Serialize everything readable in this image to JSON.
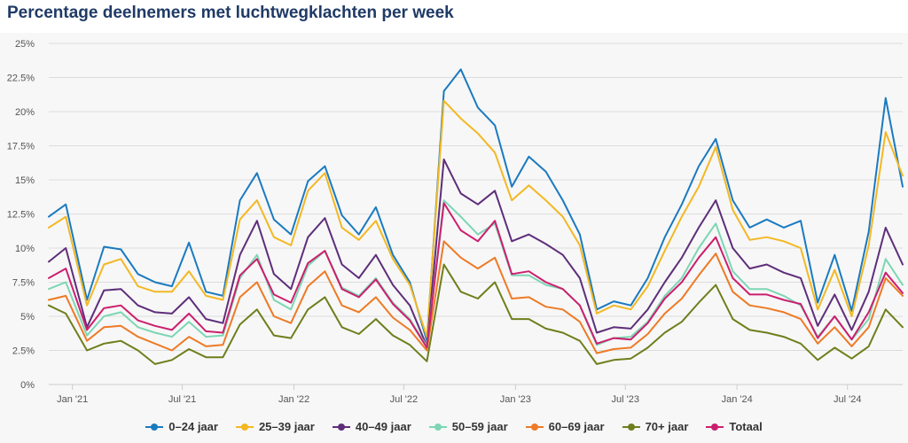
{
  "title": "Percentage deelnemers met luchtwegklachten per week",
  "chart_data": {
    "type": "line",
    "title": "Percentage deelnemers met luchtwegklachten per week",
    "xlabel": "",
    "ylabel": "",
    "ylim": [
      0,
      25
    ],
    "y_ticks": [
      "0%",
      "2.5%",
      "5%",
      "7.5%",
      "10%",
      "12.5%",
      "15%",
      "17.5%",
      "20%",
      "22.5%",
      "25%"
    ],
    "x_ticks": [
      "Jan '21",
      "Jul '21",
      "Jan '22",
      "Jul '22",
      "Jan '23",
      "Jul '23",
      "Jan '24",
      "Jul '24"
    ],
    "x_range": [
      "2020-11-23",
      "2024-09-30"
    ],
    "grid": "horizontal",
    "legend_position": "bottom",
    "x": [
      "2020-11-23",
      "2020-12-21",
      "2021-01-25",
      "2021-02-22",
      "2021-03-22",
      "2021-04-19",
      "2021-05-17",
      "2021-06-14",
      "2021-07-12",
      "2021-08-09",
      "2021-09-06",
      "2021-10-04",
      "2021-11-01",
      "2021-11-29",
      "2021-12-27",
      "2022-01-24",
      "2022-02-21",
      "2022-03-21",
      "2022-04-18",
      "2022-05-16",
      "2022-06-13",
      "2022-07-11",
      "2022-08-08",
      "2022-09-05",
      "2022-10-03",
      "2022-10-31",
      "2022-11-28",
      "2022-12-26",
      "2023-01-23",
      "2023-02-20",
      "2023-03-20",
      "2023-04-17",
      "2023-05-15",
      "2023-06-12",
      "2023-07-10",
      "2023-08-07",
      "2023-09-04",
      "2023-10-02",
      "2023-10-30",
      "2023-11-27",
      "2023-12-25",
      "2024-01-22",
      "2024-02-19",
      "2024-03-18",
      "2024-04-15",
      "2024-05-13",
      "2024-06-10",
      "2024-07-08",
      "2024-08-05",
      "2024-09-02",
      "2024-09-30"
    ],
    "series": [
      {
        "name": "0–24 jaar",
        "color": "#1a7ac0",
        "values": [
          12.3,
          13.2,
          6.2,
          10.1,
          9.9,
          8.1,
          7.5,
          7.2,
          10.4,
          6.8,
          6.5,
          13.5,
          15.5,
          12.1,
          11.0,
          14.9,
          16.0,
          12.4,
          11.0,
          13.0,
          9.5,
          7.5,
          3.2,
          21.5,
          23.1,
          20.3,
          19.0,
          14.5,
          16.7,
          15.6,
          13.5,
          11.0,
          5.5,
          6.1,
          5.8,
          7.8,
          10.8,
          13.2,
          16.0,
          18.0,
          13.5,
          11.5,
          12.1,
          11.5,
          12.0,
          6.0,
          9.5,
          5.4,
          11.2,
          21.0,
          14.5
        ]
      },
      {
        "name": "25–39 jaar",
        "color": "#f3b823",
        "values": [
          11.5,
          12.3,
          5.8,
          8.8,
          9.2,
          7.2,
          6.8,
          6.8,
          8.3,
          6.5,
          6.2,
          12.1,
          13.5,
          10.8,
          10.2,
          14.2,
          15.5,
          11.5,
          10.6,
          12.0,
          9.2,
          7.3,
          3.5,
          20.8,
          19.5,
          18.4,
          17.0,
          13.5,
          14.6,
          13.5,
          12.3,
          10.2,
          5.2,
          5.8,
          5.5,
          7.2,
          9.8,
          12.3,
          14.5,
          17.4,
          12.8,
          10.6,
          10.8,
          10.5,
          10.0,
          5.5,
          8.4,
          5.0,
          10.2,
          18.5,
          15.3
        ]
      },
      {
        "name": "40–49 jaar",
        "color": "#5e2e7a",
        "values": [
          9.0,
          10.0,
          4.2,
          6.9,
          7.0,
          5.8,
          5.3,
          5.2,
          6.4,
          4.8,
          4.5,
          9.5,
          12.0,
          8.1,
          7.0,
          10.8,
          12.2,
          8.8,
          7.8,
          9.5,
          7.3,
          5.8,
          2.8,
          16.5,
          14.0,
          13.2,
          14.2,
          10.5,
          11.0,
          10.3,
          9.5,
          7.8,
          3.8,
          4.2,
          4.1,
          5.5,
          7.5,
          9.3,
          11.5,
          13.5,
          10.0,
          8.5,
          8.8,
          8.2,
          7.8,
          4.3,
          6.6,
          4.0,
          6.8,
          11.5,
          8.8
        ]
      },
      {
        "name": "50–59 jaar",
        "color": "#7dd6b4",
        "values": [
          7.0,
          7.5,
          3.6,
          5.0,
          5.3,
          4.2,
          3.8,
          3.5,
          4.6,
          3.5,
          3.6,
          7.8,
          9.5,
          6.2,
          5.5,
          8.7,
          9.8,
          7.1,
          6.5,
          7.8,
          6.0,
          4.8,
          2.8,
          13.5,
          12.3,
          11.0,
          11.8,
          8.0,
          8.0,
          7.3,
          7.0,
          5.8,
          2.9,
          3.4,
          3.5,
          4.6,
          6.5,
          7.8,
          10.0,
          11.8,
          8.3,
          7.0,
          7.0,
          6.5,
          5.8,
          3.5,
          5.0,
          3.3,
          4.8,
          9.2,
          7.3
        ]
      },
      {
        "name": "60–69 jaar",
        "color": "#ee7a25",
        "values": [
          6.2,
          6.5,
          3.2,
          4.2,
          4.3,
          3.5,
          3.0,
          2.5,
          3.5,
          2.8,
          2.9,
          6.4,
          7.5,
          5.0,
          4.5,
          7.2,
          8.3,
          5.8,
          5.3,
          6.4,
          4.9,
          4.0,
          2.5,
          10.5,
          9.3,
          8.5,
          9.3,
          6.3,
          6.4,
          5.7,
          5.5,
          4.6,
          2.3,
          2.6,
          2.7,
          3.7,
          5.2,
          6.3,
          8.0,
          9.6,
          6.8,
          5.8,
          5.6,
          5.3,
          4.8,
          3.0,
          4.2,
          2.8,
          4.2,
          7.8,
          6.5
        ]
      },
      {
        "name": "70+ jaar",
        "color": "#6e7f1c",
        "values": [
          5.8,
          5.2,
          2.5,
          3.0,
          3.2,
          2.5,
          1.5,
          1.8,
          2.6,
          2.0,
          2.0,
          4.4,
          5.5,
          3.6,
          3.4,
          5.5,
          6.4,
          4.2,
          3.7,
          4.8,
          3.6,
          2.9,
          1.7,
          8.8,
          6.8,
          6.3,
          7.5,
          4.8,
          4.8,
          4.1,
          3.8,
          3.2,
          1.5,
          1.8,
          1.9,
          2.7,
          3.8,
          4.6,
          6.0,
          7.3,
          4.8,
          4.0,
          3.8,
          3.5,
          3.0,
          1.8,
          2.7,
          1.9,
          2.8,
          5.5,
          4.2
        ]
      },
      {
        "name": "Totaal",
        "color": "#cc1f6e",
        "values": [
          7.8,
          8.5,
          4.0,
          5.6,
          5.8,
          4.7,
          4.3,
          4.0,
          5.2,
          3.9,
          3.8,
          8.0,
          9.2,
          6.6,
          6.0,
          8.9,
          9.8,
          7.0,
          6.4,
          7.7,
          5.9,
          4.7,
          2.7,
          13.3,
          11.3,
          10.5,
          12.0,
          8.1,
          8.3,
          7.5,
          7.0,
          5.8,
          3.0,
          3.4,
          3.3,
          4.5,
          6.3,
          7.5,
          9.3,
          10.8,
          7.8,
          6.6,
          6.6,
          6.2,
          5.9,
          3.4,
          5.0,
          3.3,
          5.3,
          8.2,
          6.7
        ]
      }
    ]
  }
}
